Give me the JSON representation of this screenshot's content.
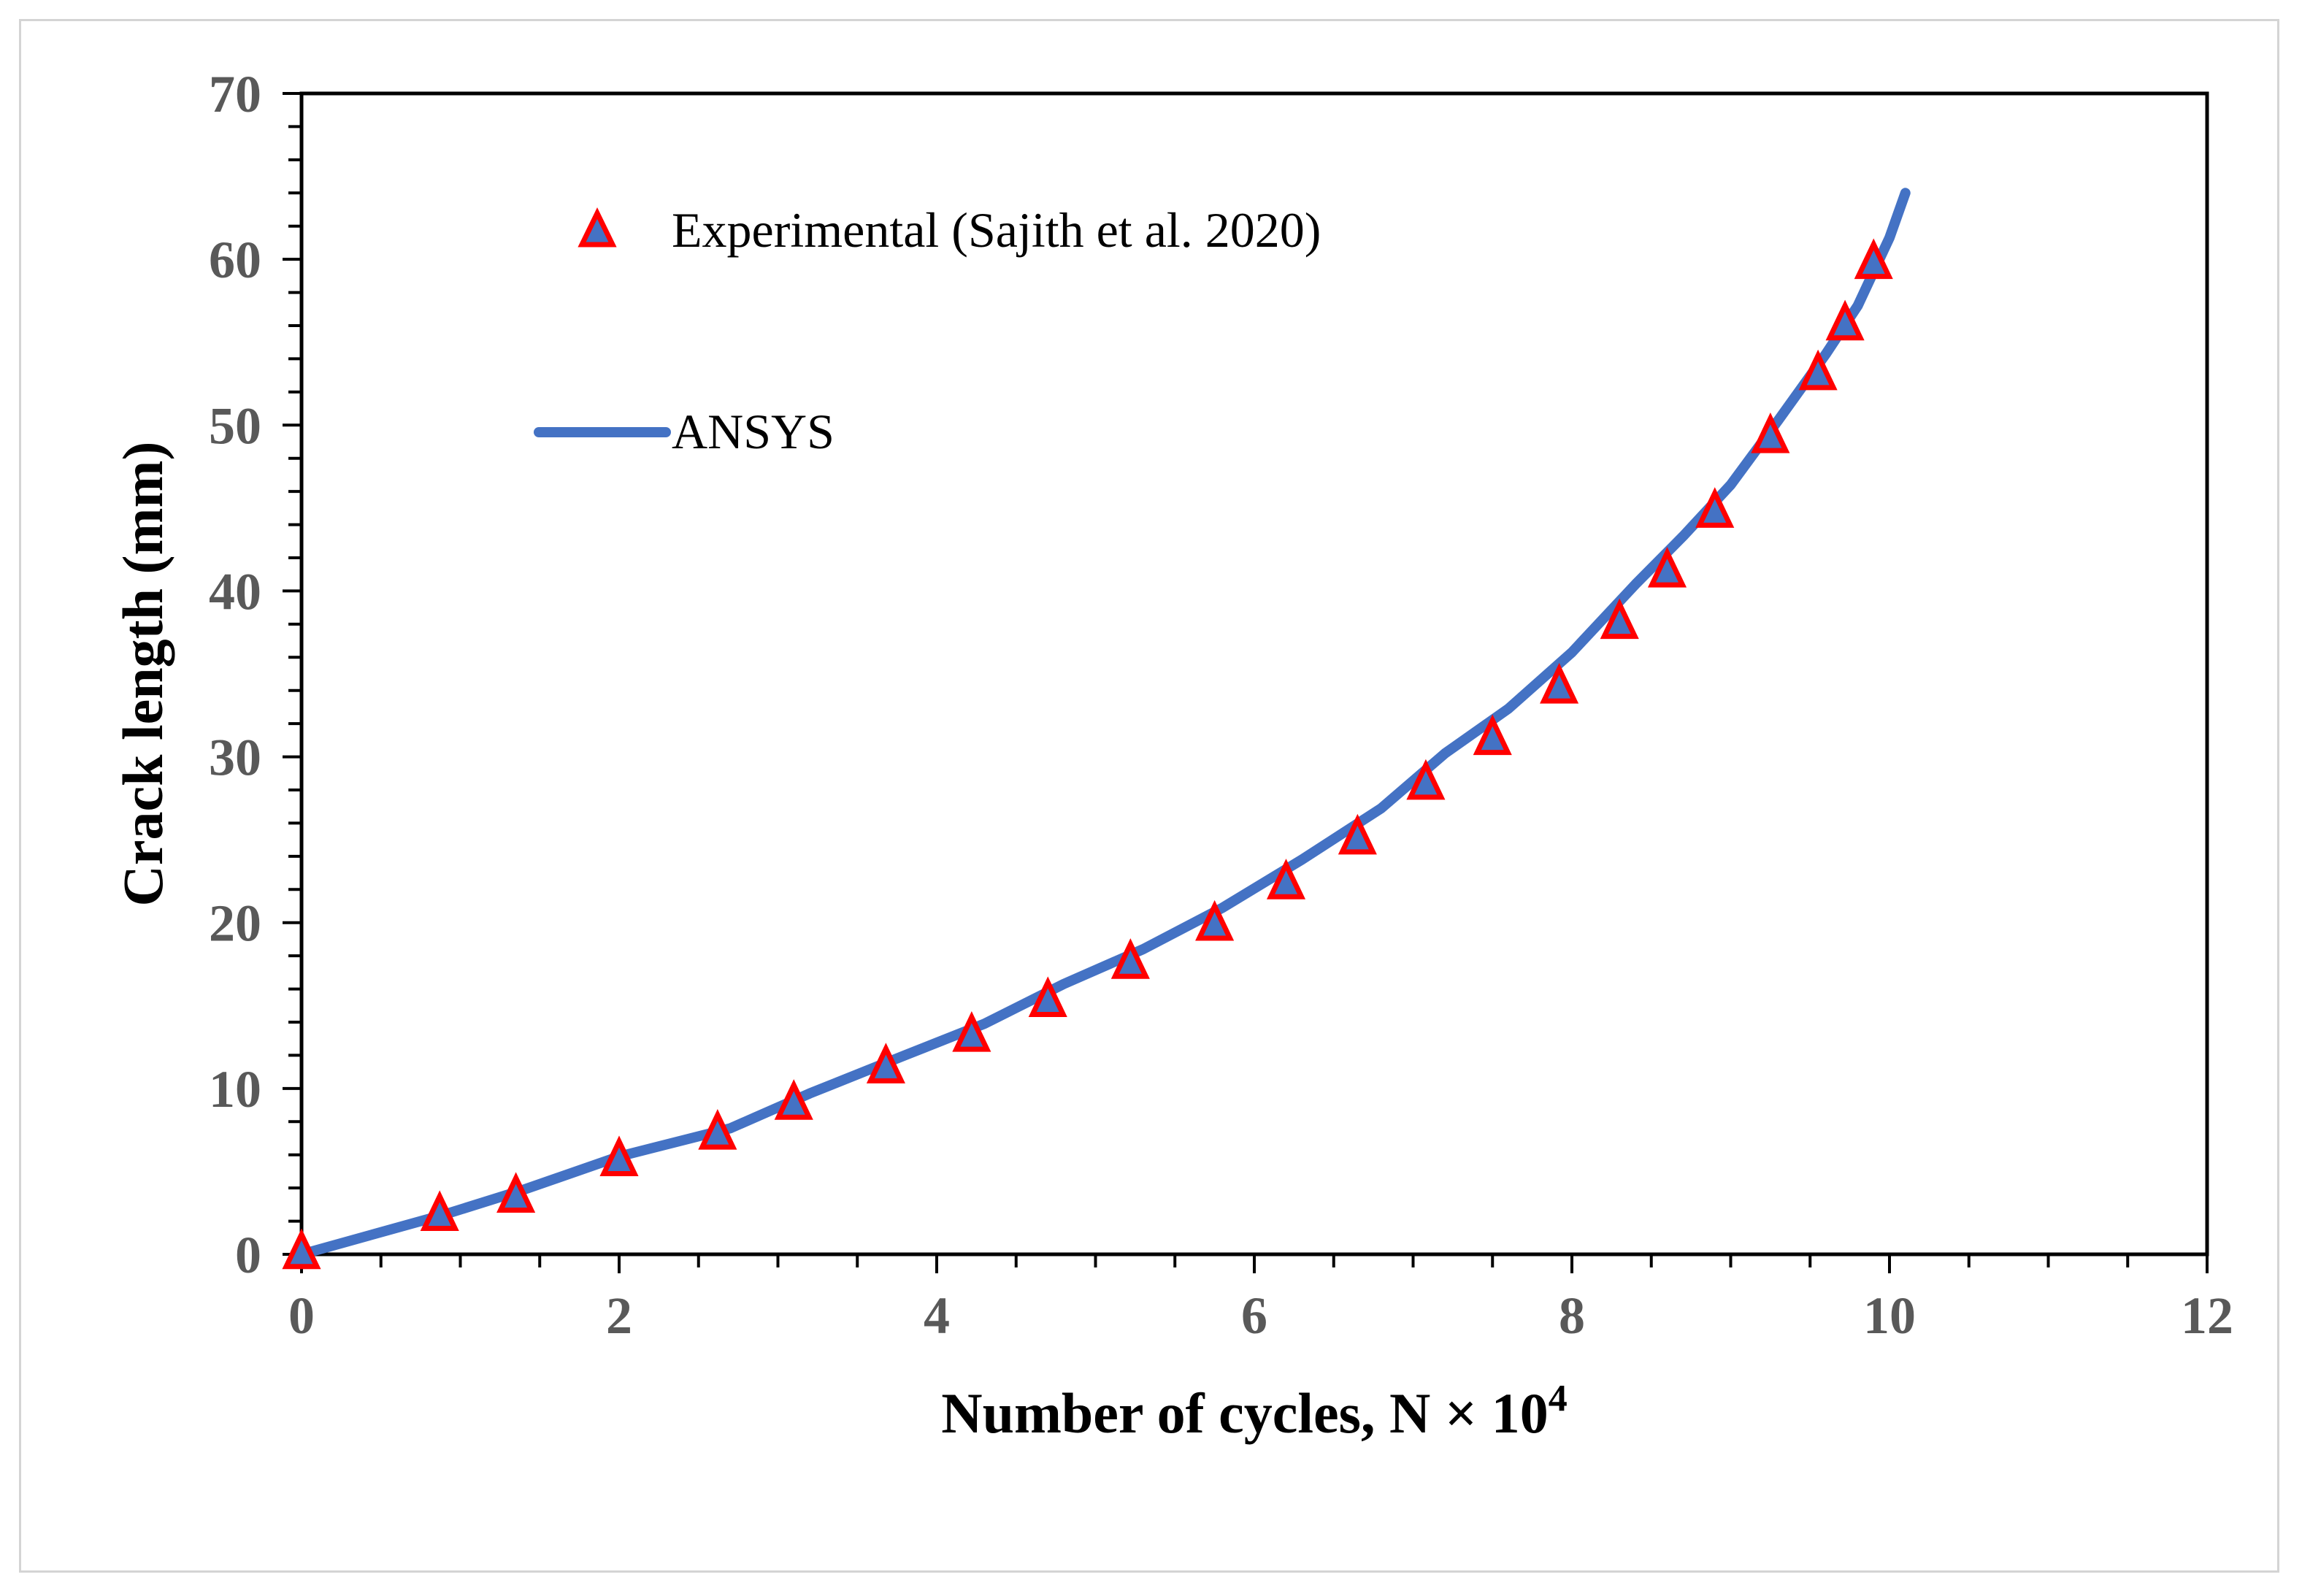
{
  "chart_data": {
    "type": "line",
    "xlabel": "Number of cycles, N × 10",
    "xlabel_sup": "4",
    "ylabel": "Crack length (mm)",
    "xlim": [
      0,
      12
    ],
    "ylim": [
      0,
      70
    ],
    "x_ticks": [
      "0",
      "2",
      "4",
      "6",
      "8",
      "10",
      "12"
    ],
    "y_ticks": [
      "0",
      "10",
      "20",
      "30",
      "40",
      "50",
      "60",
      "70"
    ],
    "grid": false,
    "legend_position": "top-left",
    "series": [
      {
        "name": "Experimental (Sajith et al. 2020)",
        "kind": "scatter",
        "marker": "triangle",
        "fill_color": "#4472c4",
        "edge_color": "#ff0000",
        "x": [
          0,
          0.87,
          1.35,
          2.0,
          2.62,
          3.1,
          3.68,
          4.22,
          4.7,
          5.22,
          5.75,
          6.2,
          6.65,
          7.08,
          7.5,
          7.92,
          8.3,
          8.6,
          8.9,
          9.25,
          9.55,
          9.72,
          9.9
        ],
        "y": [
          0,
          2.3,
          3.4,
          5.6,
          7.2,
          9.0,
          11.2,
          13.1,
          15.2,
          17.5,
          19.8,
          22.3,
          25.0,
          28.3,
          31.0,
          34.1,
          38.0,
          41.1,
          44.7,
          49.2,
          53.0,
          56.0,
          59.7
        ]
      },
      {
        "name": "ANSYS",
        "kind": "line",
        "color": "#4472c4",
        "x": [
          0,
          0.9,
          1.4,
          2.0,
          2.7,
          3.2,
          3.8,
          4.3,
          4.8,
          5.3,
          5.8,
          6.3,
          6.8,
          7.2,
          7.6,
          8.0,
          8.4,
          8.7,
          9.0,
          9.3,
          9.6,
          9.8,
          10.0,
          10.1
        ],
        "y": [
          0,
          2.4,
          3.9,
          5.9,
          7.6,
          9.7,
          12.0,
          13.9,
          16.3,
          18.4,
          20.9,
          23.8,
          26.9,
          30.2,
          32.9,
          36.3,
          40.4,
          43.3,
          46.4,
          50.3,
          54.3,
          57.2,
          61.3,
          64.0
        ]
      }
    ]
  }
}
